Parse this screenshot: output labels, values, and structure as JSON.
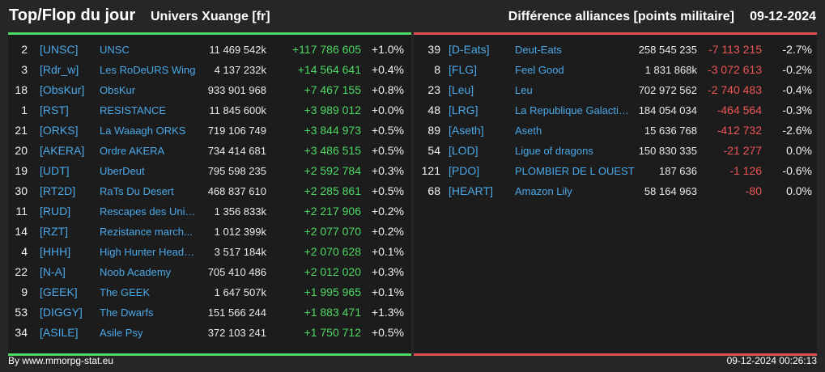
{
  "header": {
    "title": "Top/Flop du jour",
    "universe": "Univers Xuange [fr]",
    "difference_label": "Différence alliances [points militaire]",
    "date": "09-12-2024"
  },
  "colors": {
    "up": "#4cd964",
    "down": "#ee5555",
    "tag": "#4aa8e8"
  },
  "top": [
    {
      "rank": "2",
      "tag": "[UNSC]",
      "name": "UNSC",
      "points": "11 469 542k",
      "diff": "+117 786 605",
      "pct": "+1.0%"
    },
    {
      "rank": "3",
      "tag": "[Rdr_w]",
      "name": "Les RoDeURS Wing",
      "points": "4 137 232k",
      "diff": "+14 564 641",
      "pct": "+0.4%"
    },
    {
      "rank": "18",
      "tag": "[ObsKur]",
      "name": "ObsKur",
      "points": "933 901 968",
      "diff": "+7 467 155",
      "pct": "+0.8%"
    },
    {
      "rank": "1",
      "tag": "[RST]",
      "name": "RESISTANCE",
      "points": "11 845 600k",
      "diff": "+3 989 012",
      "pct": "+0.0%"
    },
    {
      "rank": "21",
      "tag": "[ORKS]",
      "name": "La Waaagh ORKS",
      "points": "719 106 749",
      "diff": "+3 844 973",
      "pct": "+0.5%"
    },
    {
      "rank": "20",
      "tag": "[AKERA]",
      "name": "Ordre AKERA",
      "points": "734 414 681",
      "diff": "+3 486 515",
      "pct": "+0.5%"
    },
    {
      "rank": "19",
      "tag": "[UDT]",
      "name": "UberDeut",
      "points": "795 598 235",
      "diff": "+2 592 784",
      "pct": "+0.3%"
    },
    {
      "rank": "30",
      "tag": "[RT2D]",
      "name": "RaTs Du Desert",
      "points": "468 837 610",
      "diff": "+2 285 861",
      "pct": "+0.5%"
    },
    {
      "rank": "11",
      "tag": "[RUD]",
      "name": "Rescapes des Univ...",
      "points": "1 356 833k",
      "diff": "+2 217 906",
      "pct": "+0.2%"
    },
    {
      "rank": "14",
      "tag": "[RZT]",
      "name": "Rezistance march...",
      "points": "1 012 399k",
      "diff": "+2 077 070",
      "pct": "+0.2%"
    },
    {
      "rank": "4",
      "tag": "[HHH]",
      "name": "High Hunter Headq...",
      "points": "3 517 184k",
      "diff": "+2 070 628",
      "pct": "+0.1%"
    },
    {
      "rank": "22",
      "tag": "[N-A]",
      "name": "Noob Academy",
      "points": "705 410 486",
      "diff": "+2 012 020",
      "pct": "+0.3%"
    },
    {
      "rank": "9",
      "tag": "[GEEK]",
      "name": "The GEEK",
      "points": "1 647 507k",
      "diff": "+1 995 965",
      "pct": "+0.1%"
    },
    {
      "rank": "53",
      "tag": "[DIGGY]",
      "name": "The Dwarfs",
      "points": "151 566 244",
      "diff": "+1 883 471",
      "pct": "+1.3%"
    },
    {
      "rank": "34",
      "tag": "[ASILE]",
      "name": "Asile Psy",
      "points": "372 103 241",
      "diff": "+1 750 712",
      "pct": "+0.5%"
    }
  ],
  "flop": [
    {
      "rank": "39",
      "tag": "[D-Eats]",
      "name": "Deut-Eats",
      "points": "258 545 235",
      "diff": "-7 113 215",
      "pct": "-2.7%"
    },
    {
      "rank": "8",
      "tag": "[FLG]",
      "name": "Feel Good",
      "points": "1 831 868k",
      "diff": "-3 072 613",
      "pct": "-0.2%"
    },
    {
      "rank": "23",
      "tag": "[Leu]",
      "name": "Leu",
      "points": "702 972 562",
      "diff": "-2 740 483",
      "pct": "-0.4%"
    },
    {
      "rank": "48",
      "tag": "[LRG]",
      "name": "La Republique Galactique",
      "points": "184 054 034",
      "diff": "-464 564",
      "pct": "-0.3%"
    },
    {
      "rank": "89",
      "tag": "[Aseth]",
      "name": "Aseth",
      "points": "15 636 768",
      "diff": "-412 732",
      "pct": "-2.6%"
    },
    {
      "rank": "54",
      "tag": "[LOD]",
      "name": "Ligue of dragons",
      "points": "150 830 335",
      "diff": "-21 277",
      "pct": "0.0%"
    },
    {
      "rank": "121",
      "tag": "[PDO]",
      "name": "PLOMBIER DE L OUEST",
      "points": "187 636",
      "diff": "-1 126",
      "pct": "-0.6%"
    },
    {
      "rank": "68",
      "tag": "[HEART]",
      "name": "Amazon Lily",
      "points": "58 164 963",
      "diff": "-80",
      "pct": "0.0%"
    }
  ],
  "footer": {
    "source": "By www.mmorpg-stat.eu",
    "timestamp": "09-12-2024 00:26:13"
  }
}
